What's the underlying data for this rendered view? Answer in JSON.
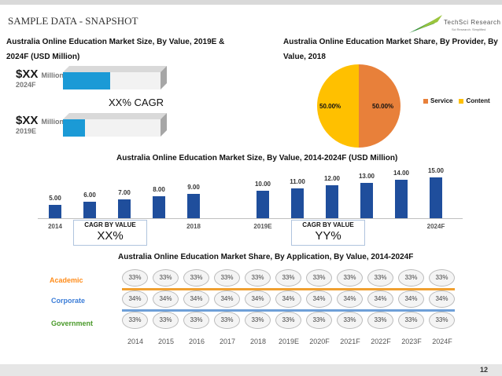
{
  "page": {
    "title": "SAMPLE DATA - SNAPSHOT",
    "page_number": "12",
    "logo": {
      "name": "TechSci Research",
      "tagline": "Sci Research. Simplified"
    }
  },
  "size_panel": {
    "title_line1": "Australia Online Education Market Size, By Value, 2019E &",
    "title_line2": "2024F (USD Million)",
    "rows": [
      {
        "value": "$XX",
        "unit": "Million",
        "year": "2024F"
      },
      {
        "value": "$XX",
        "unit": "Million",
        "year": "2019E"
      }
    ],
    "cagr": "XX% CAGR"
  },
  "share_panel": {
    "title_line1": "Australia Online Education Market Share, By Provider, By",
    "title_line2": "Value, 2018",
    "slices": [
      {
        "name": "Service",
        "value": "50.00%",
        "color": "#e8803a"
      },
      {
        "name": "Content",
        "value": "50.00%",
        "color": "#ffc000"
      }
    ]
  },
  "chart_data": {
    "type": "bar",
    "title": "Australia Online Education Market Size, By Value, 2014-2024F (USD Million)",
    "categories": [
      "2014",
      "",
      "",
      "",
      "2018",
      "2019E",
      "",
      "",
      "",
      "",
      "2024F"
    ],
    "values": [
      5.0,
      6.0,
      7.0,
      8.0,
      9.0,
      10.0,
      11.0,
      12.0,
      13.0,
      14.0,
      15.0
    ],
    "value_labels": [
      "5.00",
      "6.00",
      "7.00",
      "8.00",
      "9.00",
      "10.00",
      "11.00",
      "12.00",
      "13.00",
      "14.00",
      "15.00"
    ],
    "color": "#1f4e9c",
    "ylim": [
      0,
      16
    ]
  },
  "cagr_boxes": [
    {
      "label": "CAGR BY VALUE",
      "value": "XX%"
    },
    {
      "label": "CAGR BY VALUE",
      "value": "YY%"
    }
  ],
  "application_table": {
    "title": "Australia Online Education Market Share, By Application, By Value, 2014-2024F",
    "rows": [
      {
        "label": "Academic",
        "color": "#ff8c1a",
        "stripe": "#f0a030",
        "values": [
          "33%",
          "33%",
          "33%",
          "33%",
          "33%",
          "33%",
          "33%",
          "33%",
          "33%",
          "33%",
          "33%"
        ]
      },
      {
        "label": "Corporate",
        "color": "#3b7dd8",
        "stripe": "#6fa0d8",
        "values": [
          "34%",
          "34%",
          "34%",
          "34%",
          "34%",
          "34%",
          "34%",
          "34%",
          "34%",
          "34%",
          "34%"
        ]
      },
      {
        "label": "Government",
        "color": "#4a9a2a",
        "stripe": "#6ab04a",
        "values": [
          "33%",
          "33%",
          "33%",
          "33%",
          "33%",
          "33%",
          "33%",
          "33%",
          "33%",
          "33%",
          "33%"
        ]
      }
    ],
    "years": [
      "2014",
      "2015",
      "2016",
      "2017",
      "2018",
      "2019E",
      "2020F",
      "2021F",
      "2022F",
      "2023F",
      "2024F"
    ]
  }
}
